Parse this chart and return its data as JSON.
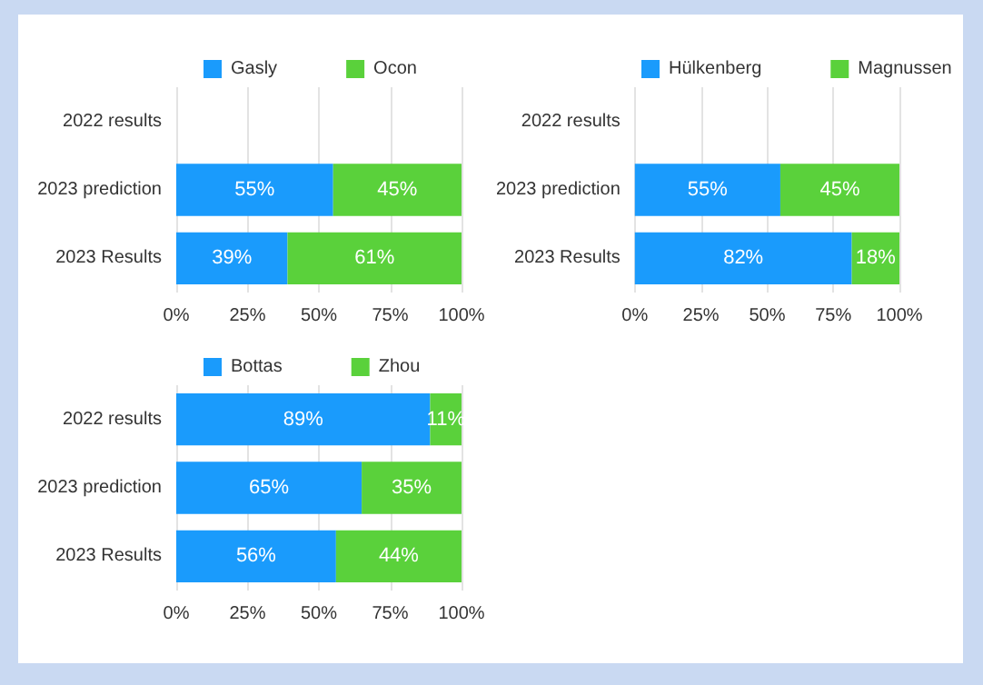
{
  "chart_data": [
    {
      "type": "bar",
      "orientation": "horizontal",
      "stacked": true,
      "categories": [
        "2022 results",
        "2023 prediction",
        "2023 Results"
      ],
      "series": [
        {
          "name": "Gasly",
          "color": "#1a9bfc",
          "values": [
            null,
            55,
            39
          ],
          "value_labels": [
            null,
            "55%",
            "39%"
          ]
        },
        {
          "name": "Ocon",
          "color": "#5ad13b",
          "values": [
            null,
            45,
            61
          ],
          "value_labels": [
            null,
            "45%",
            "61%"
          ]
        }
      ],
      "xlim": [
        0,
        100
      ],
      "xticks": [
        {
          "value": 0,
          "label": "0%"
        },
        {
          "value": 25,
          "label": "25%"
        },
        {
          "value": 50,
          "label": "50%"
        },
        {
          "value": 75,
          "label": "75%"
        },
        {
          "value": 100,
          "label": "100%"
        }
      ],
      "grid": "x",
      "legend": "top"
    },
    {
      "type": "bar",
      "orientation": "horizontal",
      "stacked": true,
      "categories": [
        "2022 results",
        "2023 prediction",
        "2023 Results"
      ],
      "series": [
        {
          "name": "Hülkenberg",
          "color": "#1a9bfc",
          "values": [
            null,
            55,
            82
          ],
          "value_labels": [
            null,
            "55%",
            "82%"
          ]
        },
        {
          "name": "Magnussen",
          "color": "#5ad13b",
          "values": [
            null,
            45,
            18
          ],
          "value_labels": [
            null,
            "45%",
            "18%"
          ]
        }
      ],
      "xlim": [
        0,
        100
      ],
      "xticks": [
        {
          "value": 0,
          "label": "0%"
        },
        {
          "value": 25,
          "label": "25%"
        },
        {
          "value": 50,
          "label": "50%"
        },
        {
          "value": 75,
          "label": "75%"
        },
        {
          "value": 100,
          "label": "100%"
        }
      ],
      "grid": "x",
      "legend": "top"
    },
    {
      "type": "bar",
      "orientation": "horizontal",
      "stacked": true,
      "categories": [
        "2022 results",
        "2023 prediction",
        "2023 Results"
      ],
      "series": [
        {
          "name": "Bottas",
          "color": "#1a9bfc",
          "values": [
            89,
            65,
            56
          ],
          "value_labels": [
            "89%",
            "65%",
            "56%"
          ]
        },
        {
          "name": "Zhou",
          "color": "#5ad13b",
          "values": [
            11,
            35,
            44
          ],
          "value_labels": [
            "11%",
            "35%",
            "44%"
          ]
        }
      ],
      "xlim": [
        0,
        100
      ],
      "xticks": [
        {
          "value": 0,
          "label": "0%"
        },
        {
          "value": 25,
          "label": "25%"
        },
        {
          "value": 50,
          "label": "50%"
        },
        {
          "value": 75,
          "label": "75%"
        },
        {
          "value": 100,
          "label": "100%"
        }
      ],
      "grid": "x",
      "legend": "top"
    }
  ]
}
